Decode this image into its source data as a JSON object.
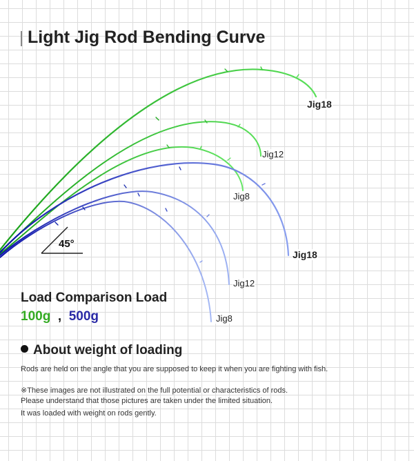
{
  "title": "Light Jig Rod Bending Curve",
  "angle_label": "45°",
  "curve_labels": {
    "green_jig18": "Jig18",
    "green_jig12": "Jig12",
    "green_jig8": "Jig8",
    "blue_jig18": "Jig18",
    "blue_jig12": "Jig12",
    "blue_jig8": "Jig8"
  },
  "colors": {
    "light_load": "#33aa22",
    "heavy_load": "#2a2aa6"
  },
  "load_comparison": {
    "heading": "Load Comparison Load",
    "light_value": "100g",
    "separator": ",",
    "heavy_value": "500g"
  },
  "about": {
    "heading": "About weight of loading",
    "lines": [
      "Rods are held on the angle that you are supposed to keep it when you are fighting with fish.",
      "※These images are not illustrated on the full potential or characteristics of rods.",
      "Please understand that those pictures are taken under the limited situation.",
      "It was loaded with weight on rods gently."
    ]
  }
}
